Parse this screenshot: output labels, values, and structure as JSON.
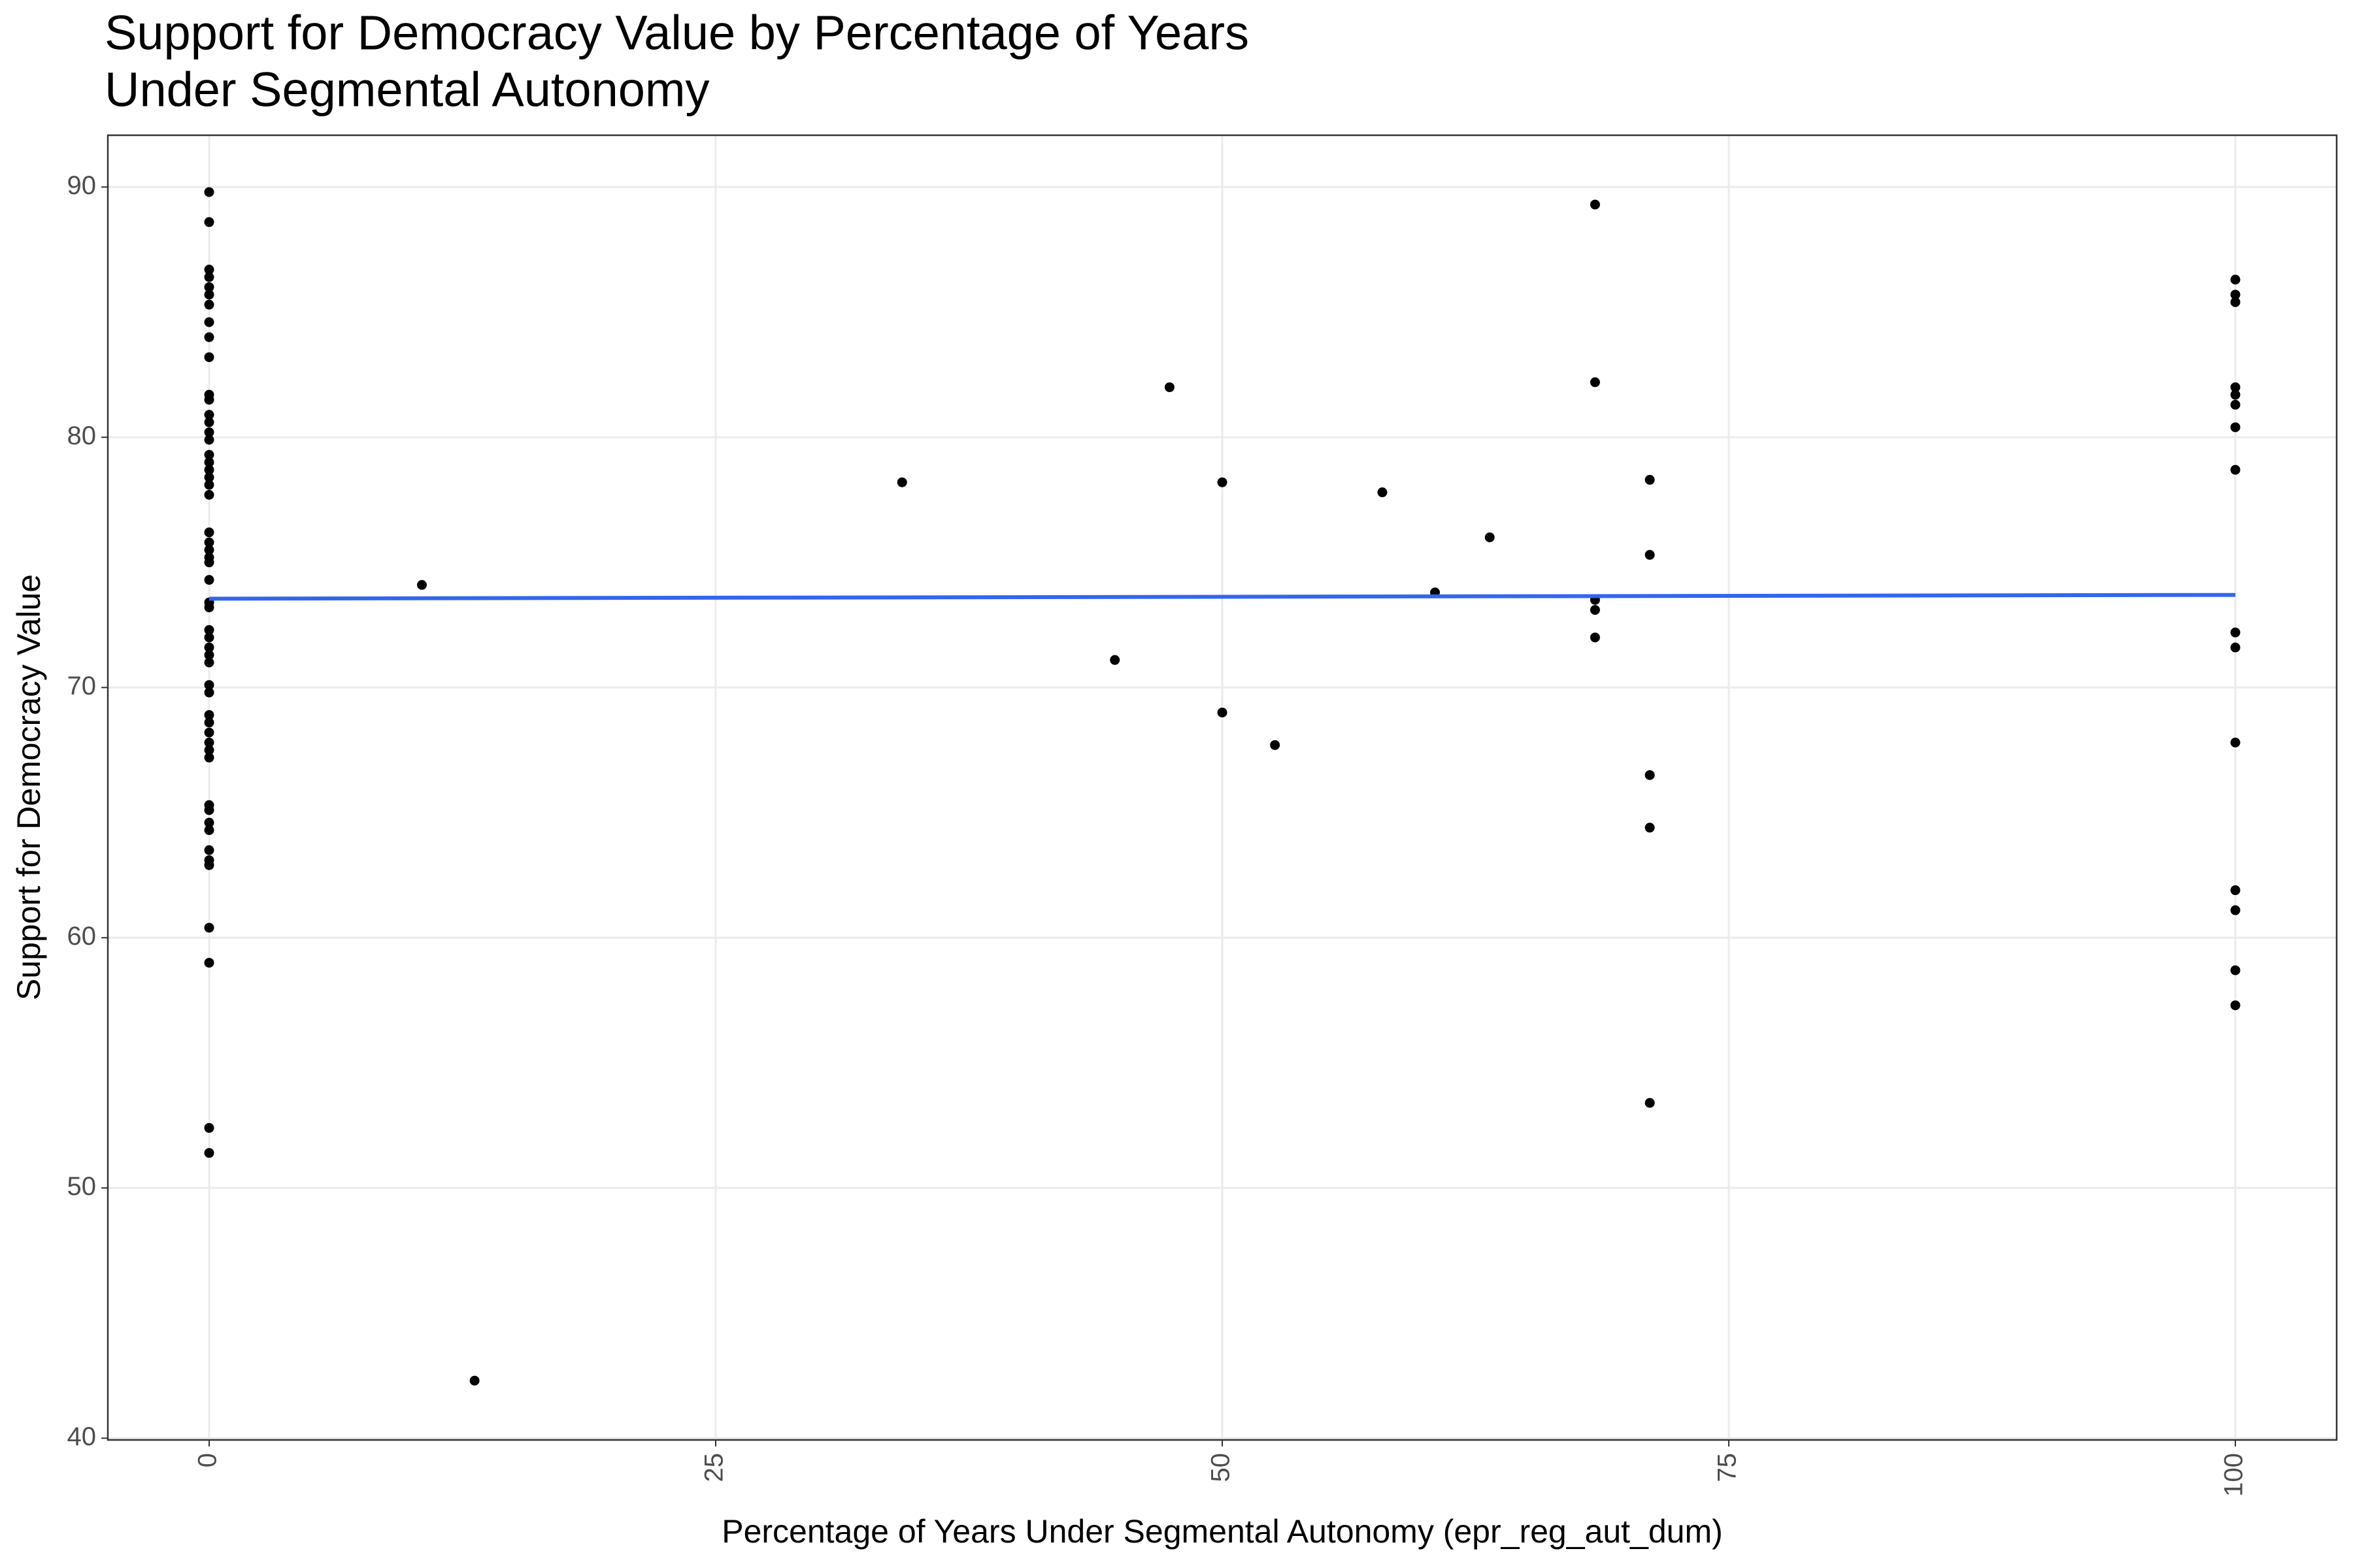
{
  "chart_data": {
    "type": "scatter",
    "title": [
      "Support for Democracy Value by Percentage of Years",
      "Under Segmental Autonomy"
    ],
    "x_label": "Percentage of Years Under Segmental Autonomy (epr_reg_aut_dum)",
    "y_label": "Support for Democracy Value",
    "x": [
      0,
      0,
      0,
      0,
      0,
      0,
      0,
      0,
      0,
      0,
      0,
      0,
      0,
      0,
      0,
      0,
      0,
      0,
      0,
      0,
      0,
      0,
      0,
      0,
      0,
      0,
      0,
      0,
      0,
      0,
      0,
      0,
      0,
      0,
      0,
      0,
      0,
      0,
      0,
      0,
      0,
      0,
      0,
      0,
      0,
      0,
      0,
      0,
      0,
      0,
      0,
      0,
      0,
      0,
      10.5,
      13.1,
      34.2,
      44.7,
      47.4,
      50,
      50,
      52.6,
      57.9,
      60.5,
      63.2,
      68.4,
      68.4,
      68.4,
      68.4,
      68.4,
      71.1,
      71.1,
      71.1,
      71.1,
      71.1,
      100,
      100,
      100,
      100,
      100,
      100,
      100,
      100,
      100,
      100,
      100,
      100,
      100,
      100,
      100
    ],
    "y": [
      89.8,
      88.6,
      86.7,
      86.4,
      86.0,
      85.7,
      85.3,
      84.6,
      84.0,
      83.2,
      81.7,
      81.5,
      80.9,
      80.6,
      80.2,
      79.9,
      79.3,
      79.0,
      78.7,
      78.4,
      78.1,
      77.7,
      76.2,
      75.8,
      75.5,
      75.2,
      75.0,
      74.3,
      73.4,
      73.2,
      72.3,
      72.0,
      71.6,
      71.3,
      71.0,
      70.1,
      69.8,
      68.9,
      68.6,
      68.2,
      67.8,
      67.5,
      67.2,
      65.3,
      65.1,
      64.6,
      64.3,
      63.5,
      63.1,
      62.9,
      60.4,
      59.0,
      52.4,
      51.4,
      74.1,
      42.3,
      78.2,
      71.1,
      82.0,
      78.2,
      69.0,
      67.7,
      77.8,
      73.8,
      76.0,
      89.3,
      82.2,
      73.5,
      73.1,
      72.0,
      78.3,
      75.3,
      66.5,
      64.4,
      53.4,
      86.3,
      85.7,
      85.4,
      82.0,
      81.7,
      81.3,
      80.4,
      78.7,
      72.2,
      71.6,
      67.8,
      61.9,
      61.1,
      58.7,
      57.3
    ],
    "color": "#000000",
    "trend": {
      "x": [
        0,
        100
      ],
      "y": [
        73.55,
        73.7
      ],
      "color": "#3366ee"
    },
    "xlim": [
      -5,
      105
    ],
    "ylim": [
      39.93,
      92.07
    ],
    "xticks": [
      0,
      25,
      50,
      75,
      100
    ],
    "yticks": [
      40,
      50,
      60,
      70,
      80,
      90
    ],
    "grid": true
  }
}
